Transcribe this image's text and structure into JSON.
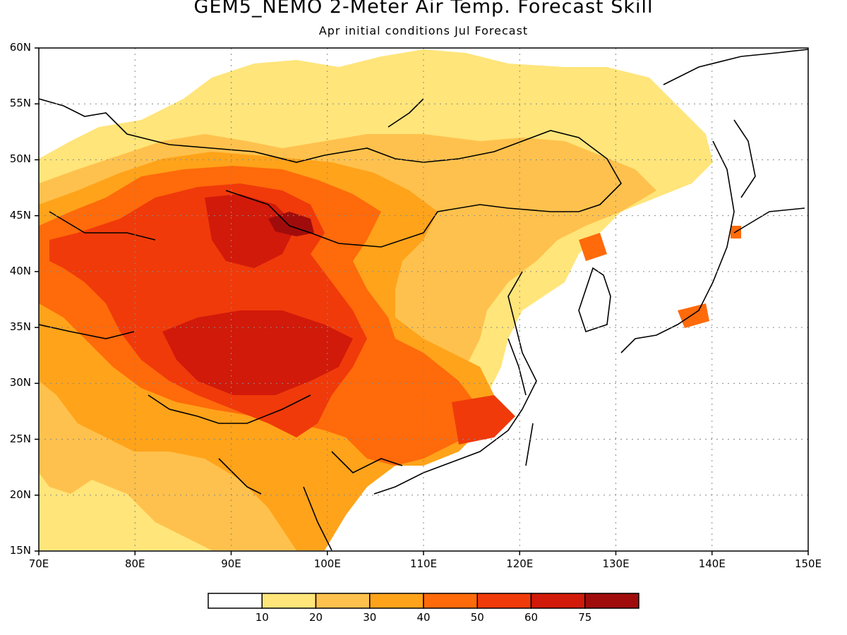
{
  "title": "GEM5_NEMO 2-Meter Air Temp. Forecast Skill",
  "subtitle": "Apr initial conditions  Jul Forecast",
  "map": {
    "lon_range": [
      70,
      150
    ],
    "lat_range": [
      15,
      60
    ],
    "lat_labels": [
      "60N",
      "55N",
      "50N",
      "45N",
      "40N",
      "35N",
      "30N",
      "25N",
      "20N",
      "15N"
    ],
    "lat_values": [
      60,
      55,
      50,
      45,
      40,
      35,
      30,
      25,
      20,
      15
    ],
    "lon_labels": [
      "70E",
      "80E",
      "90E",
      "100E",
      "110E",
      "120E",
      "130E",
      "140E",
      "150E"
    ],
    "lon_values": [
      70,
      80,
      90,
      100,
      110,
      120,
      130,
      140,
      150
    ],
    "grid": "dotted"
  },
  "colorbar": {
    "labels": [
      "10",
      "20",
      "30",
      "40",
      "50",
      "60",
      "75"
    ],
    "colors": [
      "#ffffff",
      "#ffe57a",
      "#ffc14d",
      "#ffa31a",
      "#ff6a0a",
      "#f03a0a",
      "#d11a0a",
      "#a00c0c"
    ]
  },
  "palette": {
    "c10": "#ffe57a",
    "c20": "#ffc14d",
    "c30": "#ffa31a",
    "c40": "#ff6a0a",
    "c50": "#f03a0a",
    "c60": "#d11a0a",
    "c75": "#a00c0c"
  }
}
